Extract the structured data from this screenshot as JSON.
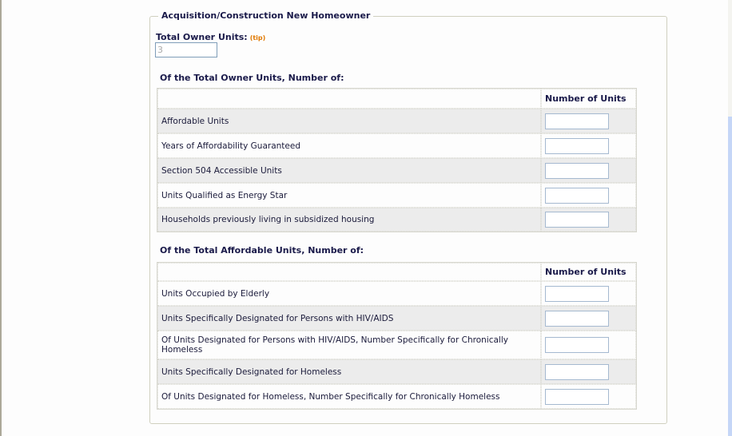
{
  "section": {
    "title": "Acquisition/Construction New Homeowner"
  },
  "total_owner_units": {
    "label": "Total Owner Units:",
    "tip": "(tip)",
    "value": "3"
  },
  "owner_table": {
    "title": "Of the Total Owner Units, Number of:",
    "header": "Number of Units",
    "rows": [
      {
        "label": "Affordable Units",
        "value": ""
      },
      {
        "label": "Years of Affordability Guaranteed",
        "value": ""
      },
      {
        "label": "Section 504 Accessible Units",
        "value": ""
      },
      {
        "label": "Units Qualified as Energy Star",
        "value": ""
      },
      {
        "label": "Households previously living in subsidized housing",
        "value": ""
      }
    ]
  },
  "affordable_table": {
    "title": "Of the Total Affordable Units, Number of:",
    "header": "Number of Units",
    "rows": [
      {
        "label": "Units Occupied by Elderly",
        "value": ""
      },
      {
        "label": "Units Specifically Designated for Persons with HIV/AIDS",
        "value": ""
      },
      {
        "label": "Of Units Designated for Persons with HIV/AIDS, Number Specifically for Chronically Homeless",
        "value": ""
      },
      {
        "label": "Units Specifically Designated for Homeless",
        "value": ""
      },
      {
        "label": "Of Units Designated for Homeless, Number Specifically for Chronically Homeless",
        "value": ""
      }
    ]
  }
}
